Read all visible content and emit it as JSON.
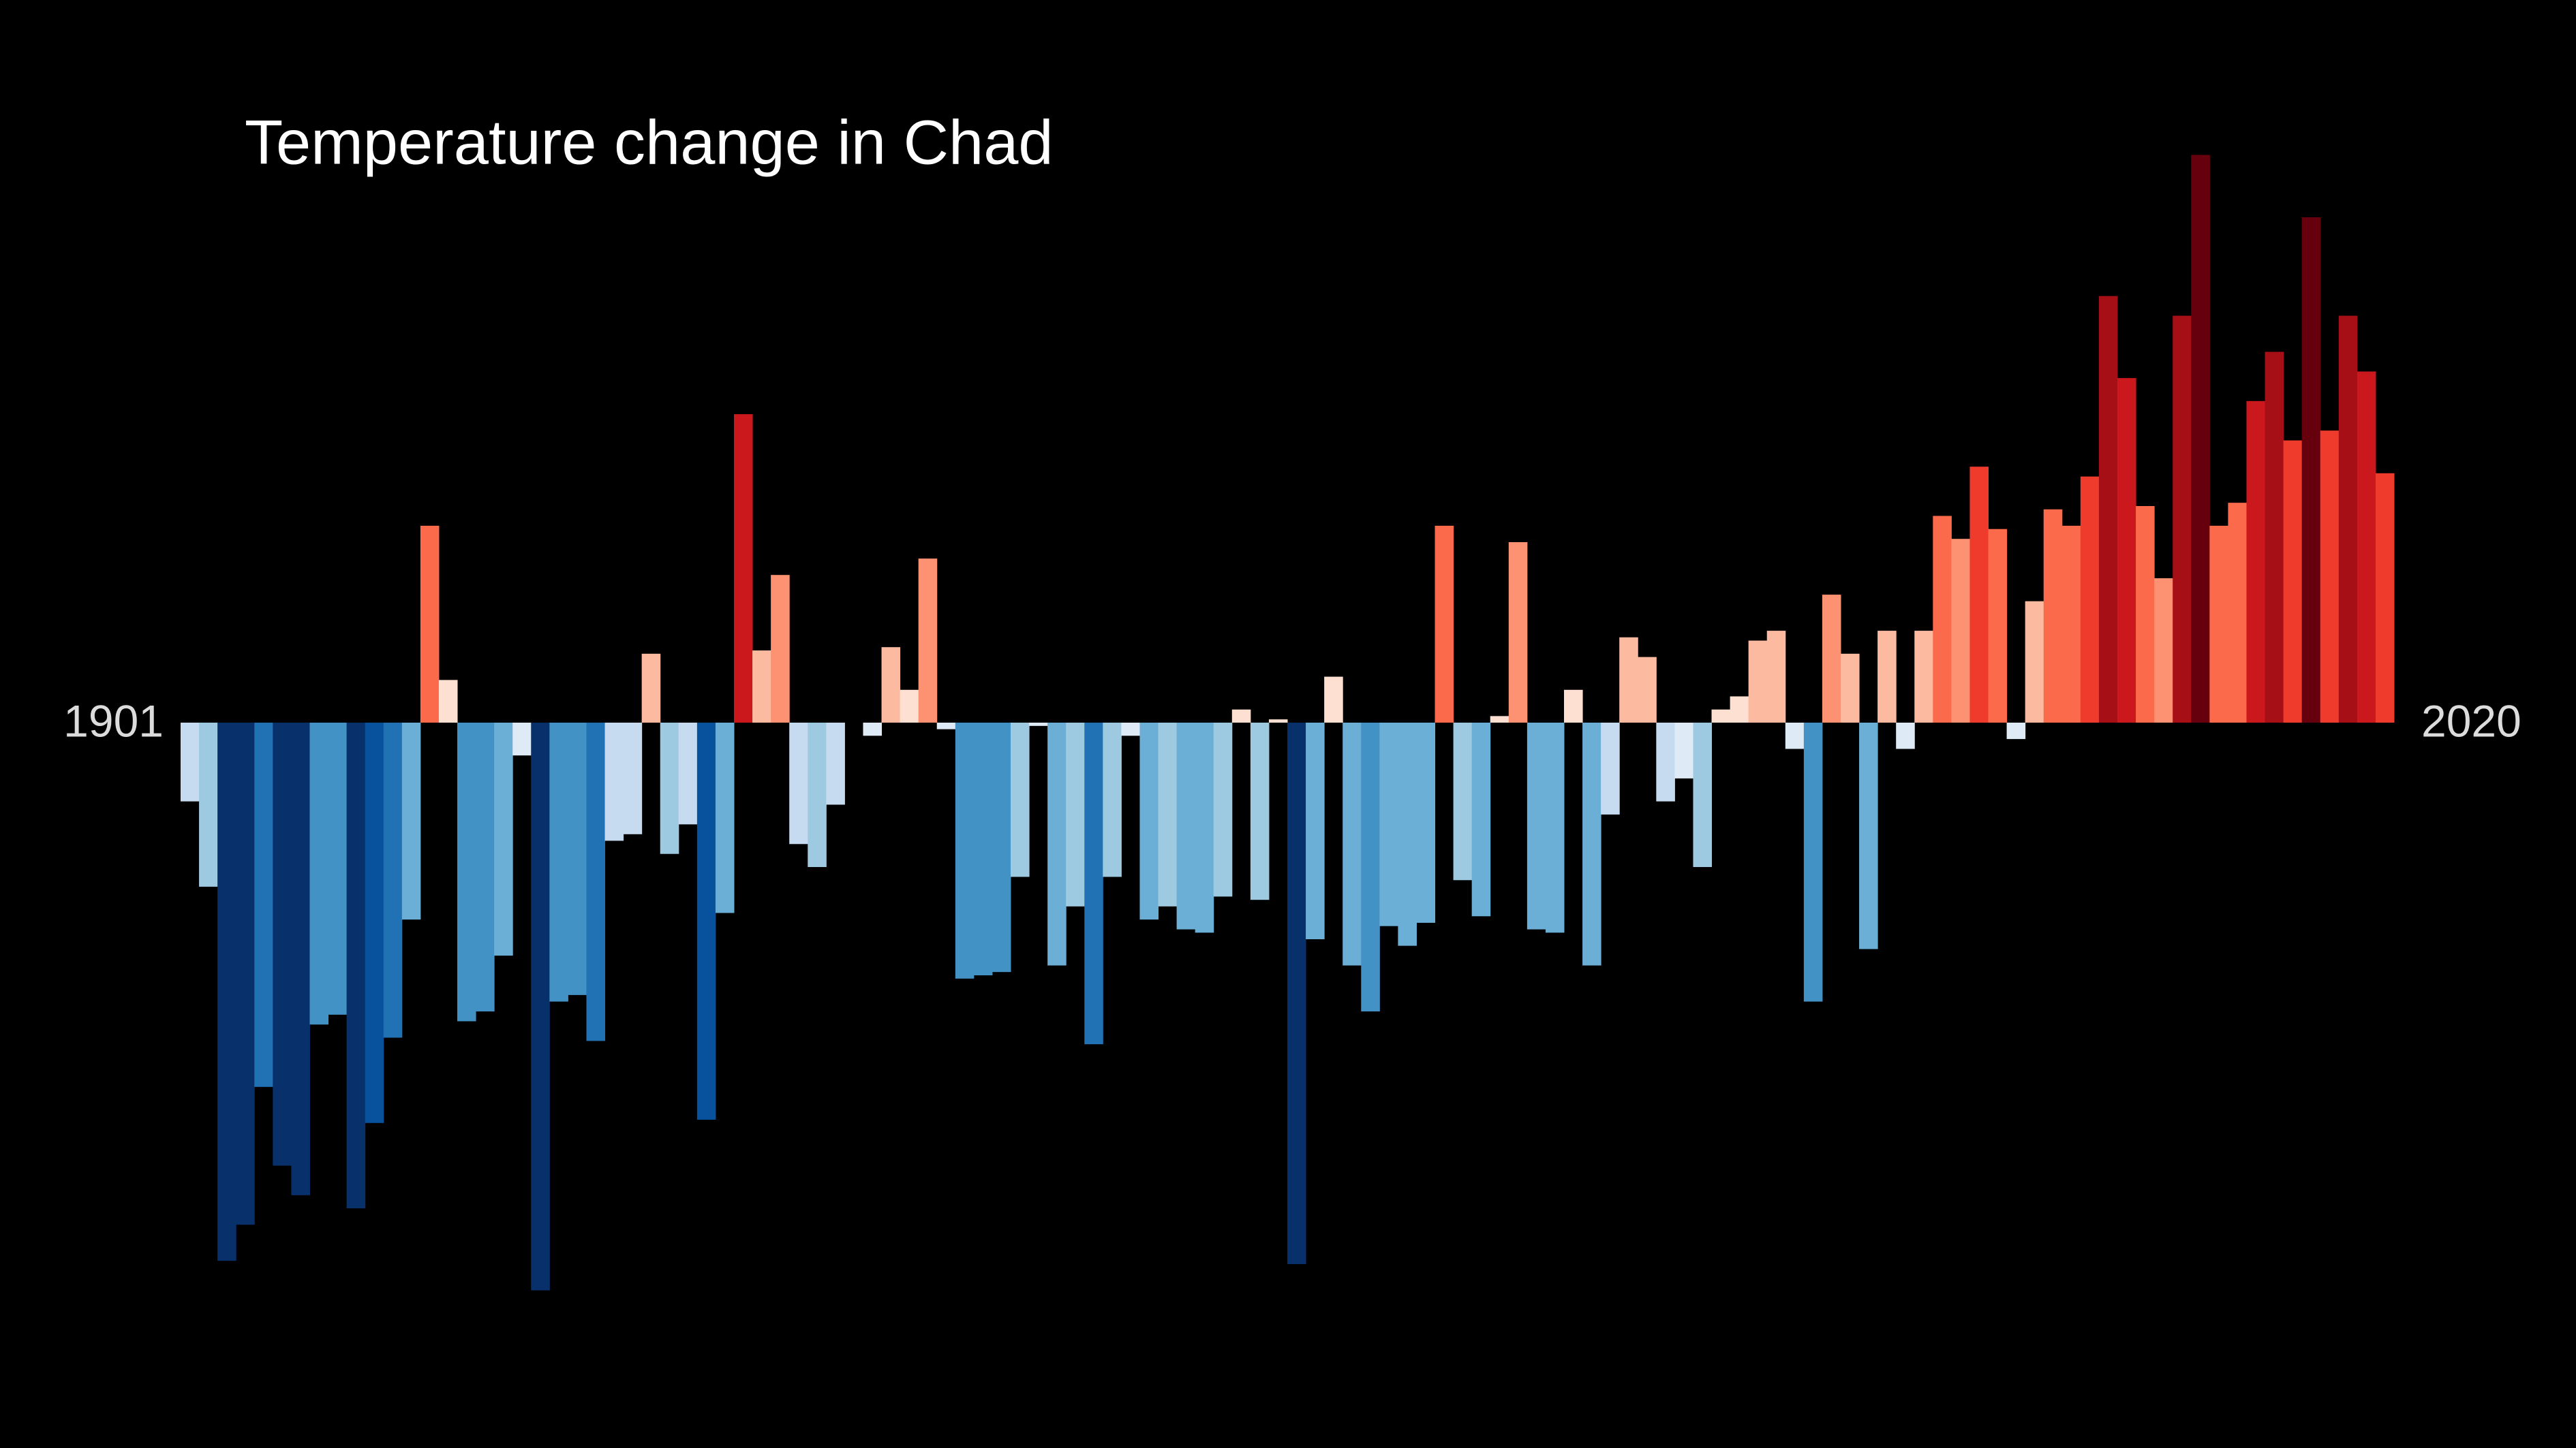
{
  "chart_data": {
    "type": "bar",
    "title": "Temperature change in Chad",
    "categories": [
      "1901",
      null,
      null,
      null,
      null,
      null,
      null,
      null,
      null,
      null,
      null,
      null,
      null,
      null,
      null,
      null,
      null,
      null,
      null,
      null,
      null,
      null,
      null,
      null,
      null,
      null,
      null,
      null,
      null,
      null,
      null,
      null,
      null,
      null,
      null,
      null,
      null,
      null,
      null,
      null,
      null,
      null,
      null,
      null,
      null,
      null,
      null,
      null,
      null,
      null,
      null,
      null,
      null,
      null,
      null,
      null,
      null,
      null,
      null,
      null,
      null,
      null,
      null,
      null,
      null,
      null,
      null,
      null,
      null,
      null,
      null,
      null,
      null,
      null,
      null,
      null,
      null,
      null,
      null,
      null,
      null,
      null,
      null,
      null,
      null,
      null,
      null,
      null,
      null,
      null,
      null,
      null,
      null,
      null,
      null,
      null,
      null,
      null,
      null,
      null,
      null,
      null,
      null,
      null,
      null,
      null,
      null,
      null,
      null,
      null,
      null,
      null,
      null,
      null,
      null,
      null,
      null,
      null,
      null,
      "2020"
    ],
    "values": [
      -0.24,
      -0.5,
      -1.64,
      -1.53,
      -1.11,
      -1.35,
      -1.44,
      -0.92,
      -0.89,
      -1.48,
      -1.22,
      -0.96,
      -0.6,
      0.6,
      0.13,
      -0.91,
      -0.88,
      -0.71,
      -0.1,
      -1.73,
      -0.85,
      -0.83,
      -0.97,
      -0.36,
      -0.34,
      0.21,
      -0.4,
      -0.31,
      -1.21,
      -0.58,
      0.94,
      0.22,
      0.45,
      -0.37,
      -0.44,
      -0.25,
      0,
      -0.04,
      0.23,
      0.1,
      0.5,
      -0.02,
      -0.78,
      -0.77,
      -0.76,
      -0.47,
      -0.01,
      -0.74,
      -0.56,
      -0.98,
      -0.47,
      -0.04,
      -0.6,
      -0.56,
      -0.63,
      -0.64,
      -0.53,
      0.04,
      -0.54,
      0.01,
      -1.65,
      -0.66,
      0.14,
      -0.74,
      -0.88,
      -0.62,
      -0.68,
      -0.61,
      0.6,
      -0.48,
      -0.59,
      0.02,
      0.55,
      -0.63,
      -0.64,
      0.1,
      -0.74,
      -0.28,
      0.26,
      0.2,
      -0.24,
      -0.17,
      -0.44,
      0.04,
      0.08,
      0.25,
      0.28,
      -0.08,
      -0.85,
      0.39,
      0.21,
      -0.69,
      0.28,
      -0.08,
      0.28,
      0.63,
      0.56,
      0.78,
      0.59,
      -0.05,
      0.37,
      0.65,
      0.6,
      0.75,
      1.3,
      1.05,
      0.66,
      0.44,
      1.24,
      1.73,
      0.6,
      0.67,
      0.98,
      1.13,
      0.86,
      1.54,
      0.89,
      1.24,
      1.07,
      0.76
    ],
    "colormap": [
      "#08306b",
      "#08519c",
      "#2171b5",
      "#4292c6",
      "#6baed6",
      "#9ecae1",
      "#c6dbef",
      "#deebf7",
      "#fee0d2",
      "#fcbba1",
      "#fc9272",
      "#fb6a4a",
      "#ef3b2c",
      "#cb181d",
      "#a50f15",
      "#67000d"
    ],
    "clim": [
      -1.5,
      1.5
    ],
    "ylim": [
      -2.2,
      2.2
    ]
  }
}
